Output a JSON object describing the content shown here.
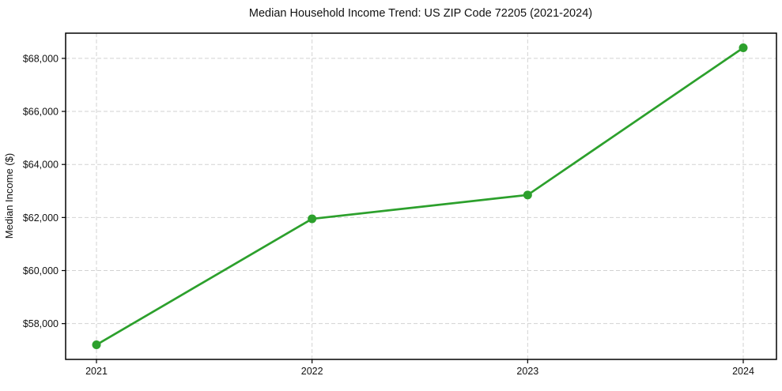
{
  "chart_data": {
    "type": "line",
    "title": "Median Household Income Trend: US ZIP Code 72205 (2021-2024)",
    "xlabel": "",
    "ylabel": "Median Income ($)",
    "categories": [
      "2021",
      "2022",
      "2023",
      "2024"
    ],
    "values": [
      57200,
      61950,
      62850,
      68400
    ],
    "ylim": [
      56650,
      68950
    ],
    "yticks": [
      58000,
      60000,
      62000,
      64000,
      66000,
      68000
    ],
    "ytick_labels": [
      "$58,000",
      "$60,000",
      "$62,000",
      "$64,000",
      "$66,000",
      "$68,000"
    ],
    "grid": true,
    "grid_line_style": "dashed",
    "legend_position": "none",
    "line_color": "#2ca02c",
    "marker_color": "#2ca02c",
    "marker_style": "circle",
    "grid_color": "#d2d2d2",
    "axis_color": "#000000",
    "text_color": "#111111",
    "background_color": "#ffffff"
  }
}
